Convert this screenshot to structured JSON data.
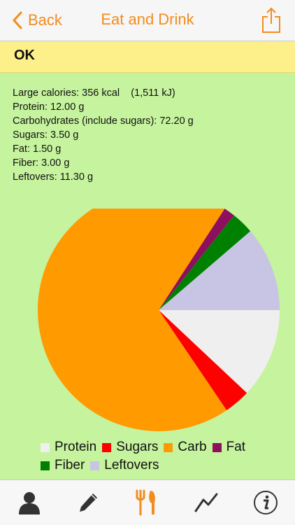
{
  "nav": {
    "back_label": "Back",
    "title": "Eat and Drink"
  },
  "status": {
    "text": "OK"
  },
  "nutrition": [
    "Large calories: 356 kcal    (1,511 kJ)",
    "Protein: 12.00 g",
    "Carbohydrates (include sugars): 72.20 g",
    "Sugars: 3.50 g",
    "Fat: 1.50 g",
    "Fiber: 3.00 g",
    "Leftovers: 11.30 g"
  ],
  "chart_data": {
    "type": "pie",
    "series": [
      {
        "name": "Protein",
        "value": 12.0,
        "color": "#efefef"
      },
      {
        "name": "Sugars",
        "value": 3.5,
        "color": "#ff0000"
      },
      {
        "name": "Carb",
        "value": 68.7,
        "color": "#ff9a00"
      },
      {
        "name": "Fat",
        "value": 1.5,
        "color": "#8d0f5e"
      },
      {
        "name": "Fiber",
        "value": 3.0,
        "color": "#008000"
      },
      {
        "name": "Leftovers",
        "value": 11.3,
        "color": "#c8c4e3"
      }
    ],
    "legend_position": "bottom"
  },
  "colors": {
    "accent": "#f28c1d",
    "background": "#c6f39e",
    "status_bar": "#fdf08a"
  },
  "tabs": [
    {
      "icon": "person-icon",
      "active": false
    },
    {
      "icon": "pencil-icon",
      "active": false
    },
    {
      "icon": "fork-knife-icon",
      "active": true
    },
    {
      "icon": "trend-line-icon",
      "active": false
    },
    {
      "icon": "info-icon",
      "active": false
    }
  ]
}
